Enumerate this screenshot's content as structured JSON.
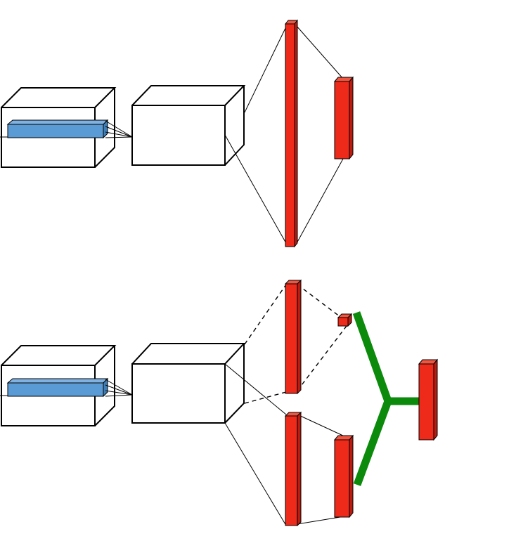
{
  "colors": {
    "background": "#ffffff",
    "outline": "#000000",
    "feature_bar": "#5b9bd5",
    "feature_bar_side": "#3f7fb8",
    "layer_red": "#ee2a1a",
    "layer_red_side": "#b91c10",
    "merge_green": "#0b8a0b"
  },
  "diagrams": [
    {
      "name": "single-branch",
      "branches": 1
    },
    {
      "name": "two-branch-merge",
      "branches": 2,
      "merge": true
    }
  ]
}
